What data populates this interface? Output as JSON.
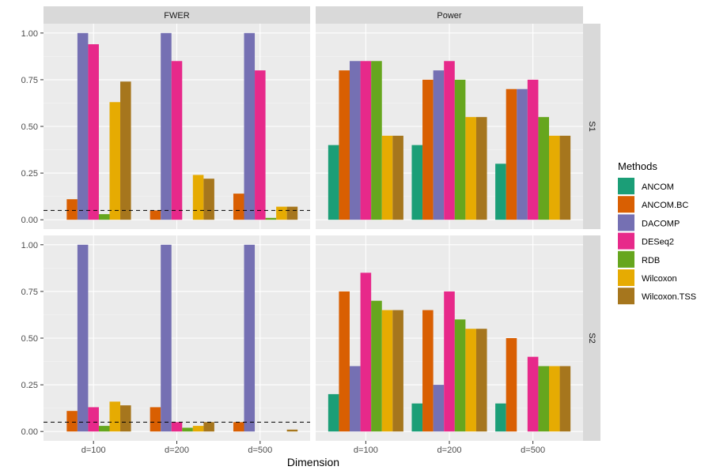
{
  "chart_data": {
    "type": "bar",
    "layout": "facet-grid",
    "xlabel": "Dimension",
    "ylabel": "",
    "ylim": [
      0,
      1.0
    ],
    "yticks": [
      "0.00",
      "0.25",
      "0.50",
      "0.75",
      "1.00"
    ],
    "reference_line": {
      "y": 0.05,
      "style": "dashed",
      "applies_to": "FWER"
    },
    "categories": [
      "d=100",
      "d=200",
      "d=500"
    ],
    "columns": [
      "FWER",
      "Power"
    ],
    "rows": [
      "S1",
      "S2"
    ],
    "legend": {
      "title": "Methods",
      "position": "right",
      "entries": [
        {
          "name": "ANCOM",
          "color": "#1b9e77"
        },
        {
          "name": "ANCOM.BC",
          "color": "#d95f02"
        },
        {
          "name": "DACOMP",
          "color": "#7570b3"
        },
        {
          "name": "DESeq2",
          "color": "#e7298a"
        },
        {
          "name": "RDB",
          "color": "#66a61e"
        },
        {
          "name": "Wilcoxon",
          "color": "#e6ab02"
        },
        {
          "name": "Wilcoxon.TSS",
          "color": "#a6761d"
        }
      ]
    },
    "panels": [
      {
        "row": "S1",
        "col": "FWER",
        "series": [
          {
            "name": "ANCOM",
            "values": [
              0.0,
              0.0,
              0.0
            ]
          },
          {
            "name": "ANCOM.BC",
            "values": [
              0.11,
              0.05,
              0.14
            ]
          },
          {
            "name": "DACOMP",
            "values": [
              1.0,
              1.0,
              1.0
            ]
          },
          {
            "name": "DESeq2",
            "values": [
              0.94,
              0.85,
              0.8
            ]
          },
          {
            "name": "RDB",
            "values": [
              0.03,
              0.0,
              0.01
            ]
          },
          {
            "name": "Wilcoxon",
            "values": [
              0.63,
              0.24,
              0.07
            ]
          },
          {
            "name": "Wilcoxon.TSS",
            "values": [
              0.74,
              0.22,
              0.07
            ]
          }
        ]
      },
      {
        "row": "S1",
        "col": "Power",
        "series": [
          {
            "name": "ANCOM",
            "values": [
              0.4,
              0.4,
              0.3
            ]
          },
          {
            "name": "ANCOM.BC",
            "values": [
              0.8,
              0.75,
              0.7
            ]
          },
          {
            "name": "DACOMP",
            "values": [
              0.85,
              0.8,
              0.7
            ]
          },
          {
            "name": "DESeq2",
            "values": [
              0.85,
              0.85,
              0.75
            ]
          },
          {
            "name": "RDB",
            "values": [
              0.85,
              0.75,
              0.55
            ]
          },
          {
            "name": "Wilcoxon",
            "values": [
              0.45,
              0.55,
              0.45
            ]
          },
          {
            "name": "Wilcoxon.TSS",
            "values": [
              0.45,
              0.55,
              0.45
            ]
          }
        ]
      },
      {
        "row": "S2",
        "col": "FWER",
        "series": [
          {
            "name": "ANCOM",
            "values": [
              0.0,
              0.0,
              0.0
            ]
          },
          {
            "name": "ANCOM.BC",
            "values": [
              0.11,
              0.13,
              0.05
            ]
          },
          {
            "name": "DACOMP",
            "values": [
              1.0,
              1.0,
              1.0
            ]
          },
          {
            "name": "DESeq2",
            "values": [
              0.13,
              0.05,
              0.0
            ]
          },
          {
            "name": "RDB",
            "values": [
              0.03,
              0.02,
              0.0
            ]
          },
          {
            "name": "Wilcoxon",
            "values": [
              0.16,
              0.03,
              0.0
            ]
          },
          {
            "name": "Wilcoxon.TSS",
            "values": [
              0.14,
              0.05,
              0.01
            ]
          }
        ]
      },
      {
        "row": "S2",
        "col": "Power",
        "series": [
          {
            "name": "ANCOM",
            "values": [
              0.2,
              0.15,
              0.15
            ]
          },
          {
            "name": "ANCOM.BC",
            "values": [
              0.75,
              0.65,
              0.5
            ]
          },
          {
            "name": "DACOMP",
            "values": [
              0.35,
              0.25,
              0.0
            ]
          },
          {
            "name": "DESeq2",
            "values": [
              0.85,
              0.75,
              0.4
            ]
          },
          {
            "name": "RDB",
            "values": [
              0.7,
              0.6,
              0.35
            ]
          },
          {
            "name": "Wilcoxon",
            "values": [
              0.65,
              0.55,
              0.35
            ]
          },
          {
            "name": "Wilcoxon.TSS",
            "values": [
              0.65,
              0.55,
              0.35
            ]
          }
        ]
      }
    ]
  }
}
